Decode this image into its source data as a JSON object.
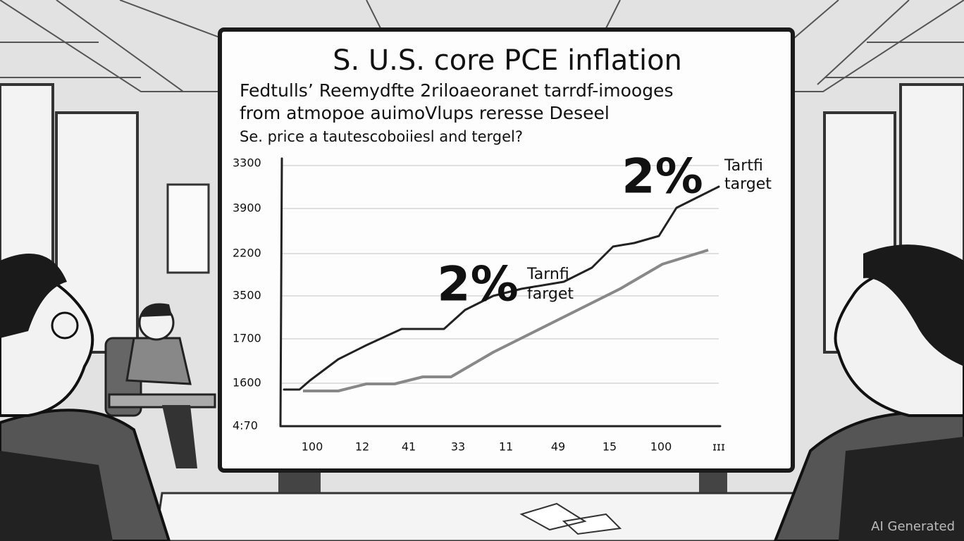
{
  "screen": {
    "title": "S. U.S. core PCE inflation",
    "subtitle_lines": [
      "Fedtulls’ Reemydfte 2riloaeoranet tarrdf-imooges",
      "from atmopoe auimoVlups reresse Deseel"
    ],
    "note": "Se. price a tautescoboiiesl and tergel?",
    "y_labels": [
      "3300",
      "3900",
      "2200",
      "3500",
      "1700",
      "1600",
      "4:70"
    ],
    "x_labels": [
      "100",
      "12",
      "41",
      "33",
      "11",
      "49",
      "15",
      "100",
      "ɪɪɪ"
    ],
    "annotations": [
      {
        "text": "2%",
        "label_lines": [
          "Tartfi",
          "target"
        ]
      },
      {
        "text": "2%",
        "label_lines": [
          "Tarnfi",
          "farget"
        ]
      }
    ]
  },
  "watermark": "AI Generated"
}
